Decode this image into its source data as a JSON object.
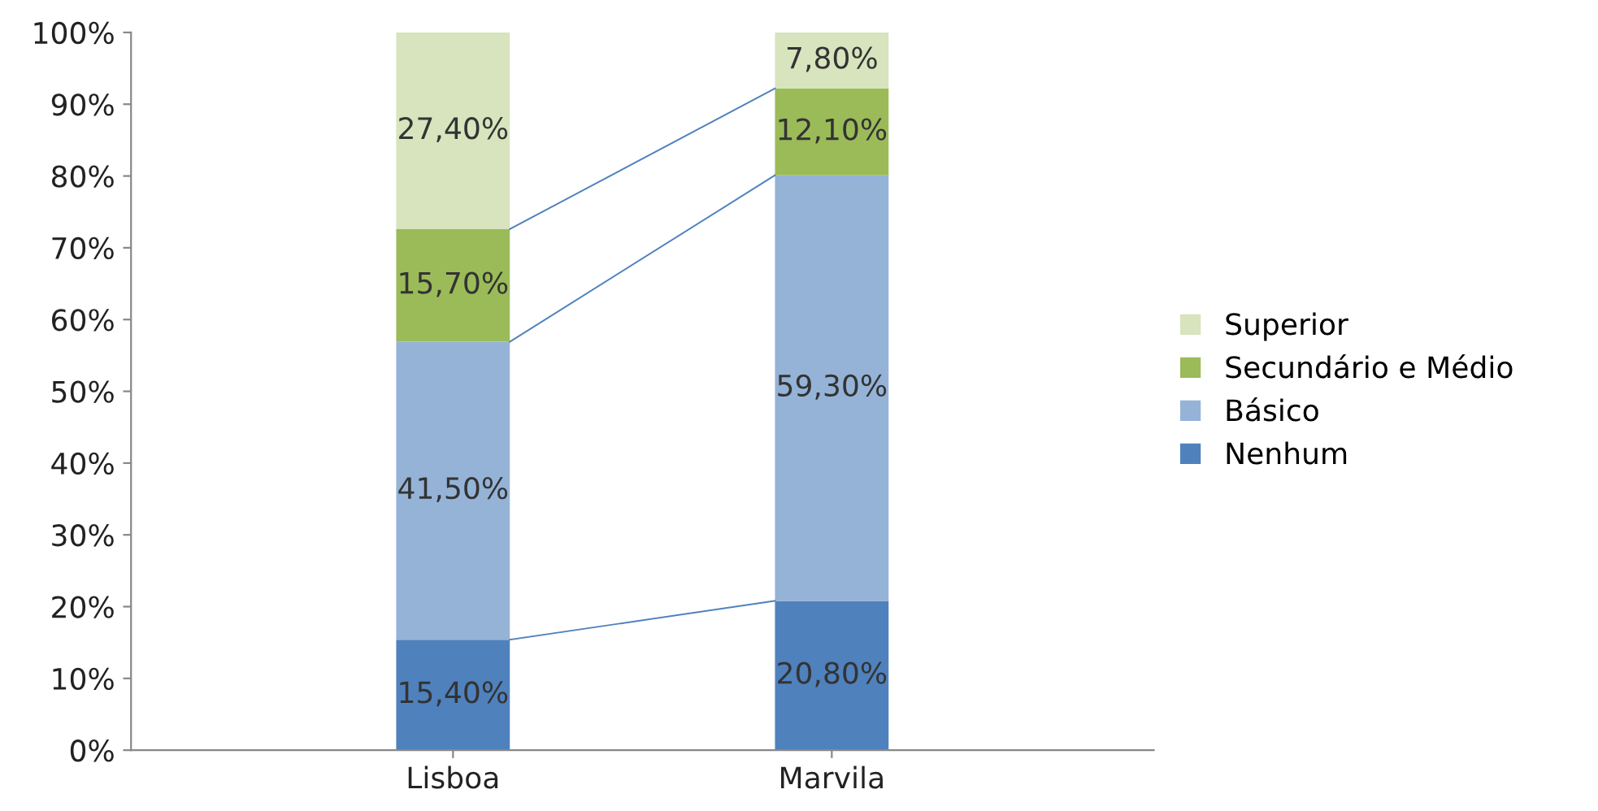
{
  "chart_data": {
    "type": "bar",
    "stacked": true,
    "categories": [
      "Lisboa",
      "Marvila"
    ],
    "series": [
      {
        "name": "Nenhum",
        "color": "#4f81bd",
        "values": [
          15.4,
          20.8
        ],
        "value_labels": [
          "15,40%",
          "20,80%"
        ]
      },
      {
        "name": "Básico",
        "color": "#95b3d7",
        "values": [
          41.5,
          59.3
        ],
        "value_labels": [
          "41,50%",
          "59,30%"
        ]
      },
      {
        "name": "Secundário e Médio",
        "color": "#9bbb59",
        "values": [
          15.7,
          12.1
        ],
        "value_labels": [
          "15,70%",
          "12,10%"
        ]
      },
      {
        "name": "Superior",
        "color": "#d7e4bd",
        "values": [
          27.4,
          7.8
        ],
        "value_labels": [
          "27,40%",
          "7,80%"
        ]
      }
    ],
    "ylim": [
      0,
      100
    ],
    "yticks": [
      {
        "value": 0,
        "label": "0%"
      },
      {
        "value": 10,
        "label": "10%"
      },
      {
        "value": 20,
        "label": "20%"
      },
      {
        "value": 30,
        "label": "30%"
      },
      {
        "value": 40,
        "label": "40%"
      },
      {
        "value": 50,
        "label": "50%"
      },
      {
        "value": 60,
        "label": "60%"
      },
      {
        "value": 70,
        "label": "70%"
      },
      {
        "value": 80,
        "label": "80%"
      },
      {
        "value": 90,
        "label": "90%"
      },
      {
        "value": 100,
        "label": "100%"
      }
    ],
    "grid": false,
    "legend": "right"
  }
}
